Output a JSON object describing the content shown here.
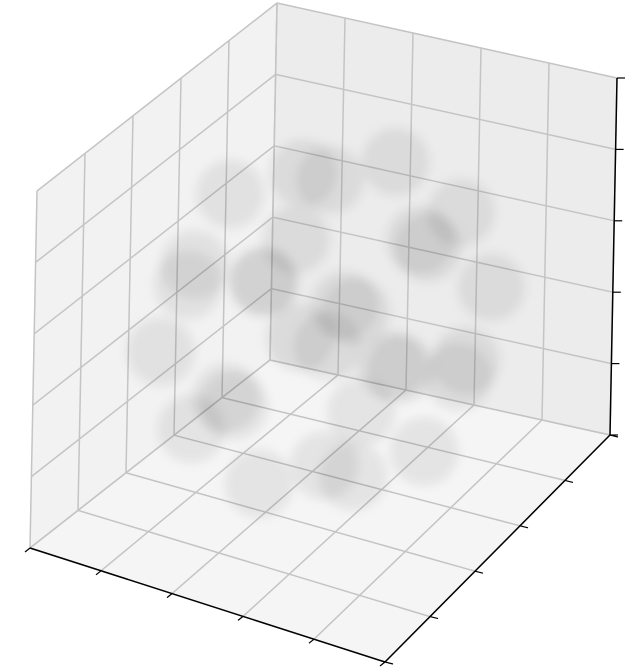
{
  "chart_data": {
    "type": "scatter3d",
    "color": "#000000",
    "grid": true,
    "xlim": [
      -1,
      1
    ],
    "ylim": [
      -1,
      1
    ],
    "zlim": [
      -1,
      1
    ],
    "xticks": [
      -1,
      -0.6,
      -0.2,
      0.2,
      0.6,
      1
    ],
    "yticks": [
      -1,
      -0.6,
      -0.2,
      0.2,
      0.6,
      1
    ],
    "zticks": [
      -1,
      -0.6,
      -0.2,
      0.2,
      0.6,
      1
    ],
    "x": [
      0.8,
      -0.8,
      0,
      0,
      0,
      0,
      0.46,
      -0.46,
      0.46,
      -0.46,
      0.46,
      -0.46,
      0.46,
      -0.46,
      0.57,
      -0.57,
      0.57,
      -0.57,
      0.57,
      -0.57,
      0.57,
      -0.57,
      0,
      0,
      0,
      0,
      0.3,
      -0.2,
      0.1,
      -0.3
    ],
    "y": [
      0,
      0,
      0.8,
      -0.8,
      0,
      0,
      0.46,
      0.46,
      -0.46,
      -0.46,
      0.46,
      0.46,
      -0.46,
      -0.46,
      0.57,
      0.57,
      -0.57,
      -0.57,
      0,
      0,
      0,
      0,
      0.57,
      -0.57,
      0.57,
      -0.57,
      0.2,
      0.3,
      -0.3,
      -0.1
    ],
    "z": [
      0,
      0,
      0,
      0,
      0.8,
      -0.8,
      0.46,
      0.46,
      0.46,
      0.46,
      -0.46,
      -0.46,
      -0.46,
      -0.46,
      0,
      0,
      0,
      0,
      0.57,
      0.57,
      -0.57,
      -0.57,
      0.57,
      0.57,
      -0.57,
      -0.57,
      0.1,
      -0.3,
      0.2,
      -0.1
    ]
  }
}
